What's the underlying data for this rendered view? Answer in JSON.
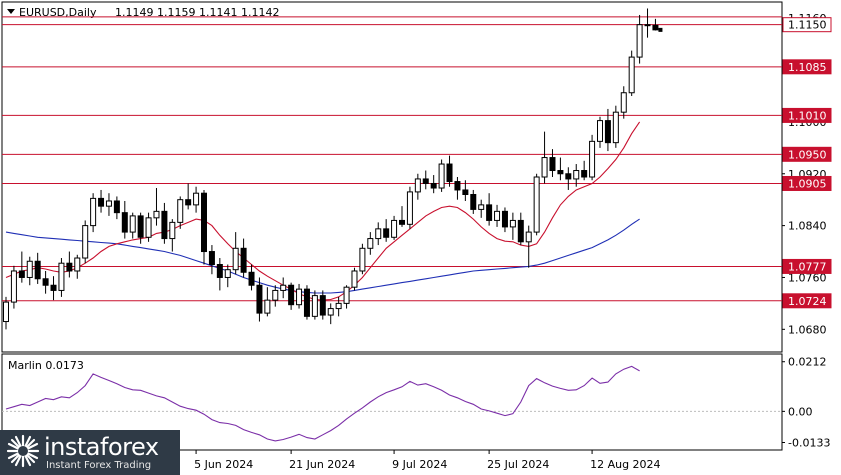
{
  "header": {
    "symbol": "EURUSD,Daily",
    "ohlc": "1.1149 1.1159 1.1141 1.1142"
  },
  "chart_data": [
    {
      "type": "candlestick",
      "title": "EURUSD,Daily",
      "ylim": [
        1.0645,
        1.1185
      ],
      "y_ticks": [
        "1.1160",
        "1.1000",
        "1.0920",
        "1.0840",
        "1.0760",
        "1.0680"
      ],
      "y_tick_values": [
        1.116,
        1.1,
        1.092,
        1.084,
        1.076,
        1.068
      ],
      "x_labels": [
        "5 Jun 2024",
        "21 Jun 2024",
        "9 Jul 2024",
        "25 Jul 2024",
        "12 Aug 2024"
      ],
      "x_label_index": [
        24,
        36,
        49,
        61,
        74
      ],
      "levels": [
        {
          "label": "1.1150",
          "value": 1.115,
          "boxed": true
        },
        {
          "label": "1.1085",
          "value": 1.1085,
          "boxed": false
        },
        {
          "label": "1.1010",
          "value": 1.101,
          "boxed": false
        },
        {
          "label": "1.0950",
          "value": 1.095,
          "boxed": false
        },
        {
          "label": "1.0905",
          "value": 1.0905,
          "boxed": false
        },
        {
          "label": "1.0777",
          "value": 1.0777,
          "boxed": false
        },
        {
          "label": "1.0724",
          "value": 1.0724,
          "boxed": false
        }
      ],
      "current_price_label": "1.1142",
      "candles": [
        [
          1.0692,
          1.073,
          1.068,
          1.0722
        ],
        [
          1.0722,
          1.0778,
          1.0712,
          1.077
        ],
        [
          1.077,
          1.08,
          1.0752,
          1.076
        ],
        [
          1.076,
          1.0792,
          1.0748,
          1.0785
        ],
        [
          1.0785,
          1.0798,
          1.075,
          1.0758
        ],
        [
          1.0758,
          1.077,
          1.0735,
          1.0748
        ],
        [
          1.0748,
          1.0762,
          1.0725,
          1.074
        ],
        [
          1.074,
          1.079,
          1.073,
          1.0782
        ],
        [
          1.0782,
          1.08,
          1.076,
          1.077
        ],
        [
          1.077,
          1.0795,
          1.0758,
          1.079
        ],
        [
          1.079,
          1.0848,
          1.0782,
          1.084
        ],
        [
          1.084,
          1.089,
          1.083,
          1.0882
        ],
        [
          1.0882,
          1.0895,
          1.086,
          1.087
        ],
        [
          1.087,
          1.089,
          1.0855,
          1.0878
        ],
        [
          1.0878,
          1.0885,
          1.085,
          1.086
        ],
        [
          1.086,
          1.0878,
          1.082,
          1.083
        ],
        [
          1.083,
          1.086,
          1.082,
          1.0855
        ],
        [
          1.0855,
          1.086,
          1.0812,
          1.0822
        ],
        [
          1.0822,
          1.086,
          1.0815,
          1.0852
        ],
        [
          1.0852,
          1.0898,
          1.084,
          1.0862
        ],
        [
          1.0862,
          1.0875,
          1.0812,
          1.082
        ],
        [
          1.082,
          1.085,
          1.08,
          1.0845
        ],
        [
          1.0845,
          1.0885,
          1.0835,
          1.088
        ],
        [
          1.088,
          1.0905,
          1.0865,
          1.0872
        ],
        [
          1.0872,
          1.09,
          1.086,
          1.089
        ],
        [
          1.089,
          1.0895,
          1.078,
          1.08
        ],
        [
          1.08,
          1.081,
          1.0765,
          1.078
        ],
        [
          1.078,
          1.079,
          1.074,
          1.076
        ],
        [
          1.076,
          1.078,
          1.0745,
          1.0772
        ],
        [
          1.0772,
          1.083,
          1.0765,
          1.0805
        ],
        [
          1.0805,
          1.082,
          1.076,
          1.0768
        ],
        [
          1.0768,
          1.078,
          1.074,
          1.0748
        ],
        [
          1.0748,
          1.076,
          1.0692,
          1.0705
        ],
        [
          1.0705,
          1.0745,
          1.07,
          1.0725
        ],
        [
          1.0725,
          1.0748,
          1.0715,
          1.074
        ],
        [
          1.074,
          1.076,
          1.0728,
          1.0748
        ],
        [
          1.0748,
          1.0752,
          1.071,
          1.0718
        ],
        [
          1.0718,
          1.075,
          1.0712,
          1.0742
        ],
        [
          1.0742,
          1.0748,
          1.0695,
          1.07
        ],
        [
          1.07,
          1.074,
          1.0695,
          1.0732
        ],
        [
          1.0732,
          1.074,
          1.0695,
          1.0702
        ],
        [
          1.0702,
          1.072,
          1.0688,
          1.0712
        ],
        [
          1.0712,
          1.073,
          1.07,
          1.072
        ],
        [
          1.072,
          1.0748,
          1.0712,
          1.0745
        ],
        [
          1.0745,
          1.0775,
          1.074,
          1.077
        ],
        [
          1.077,
          1.0812,
          1.0765,
          1.0805
        ],
        [
          1.0805,
          1.083,
          1.0795,
          1.082
        ],
        [
          1.082,
          1.0845,
          1.081,
          1.0835
        ],
        [
          1.0835,
          1.085,
          1.0815,
          1.0822
        ],
        [
          1.0822,
          1.0855,
          1.0818,
          1.0848
        ],
        [
          1.0848,
          1.087,
          1.0838,
          1.0842
        ],
        [
          1.0842,
          1.09,
          1.0835,
          1.0892
        ],
        [
          1.0892,
          1.092,
          1.088,
          1.0912
        ],
        [
          1.0912,
          1.0925,
          1.0896,
          1.0905
        ],
        [
          1.0905,
          1.0918,
          1.089,
          1.0898
        ],
        [
          1.0898,
          1.0942,
          1.0892,
          1.0935
        ],
        [
          1.0935,
          1.0948,
          1.09,
          1.0908
        ],
        [
          1.0908,
          1.0915,
          1.088,
          1.0895
        ],
        [
          1.0895,
          1.091,
          1.0878,
          1.0888
        ],
        [
          1.0888,
          1.0895,
          1.0858,
          1.0865
        ],
        [
          1.0865,
          1.088,
          1.0852,
          1.0872
        ],
        [
          1.0872,
          1.089,
          1.084,
          1.0848
        ],
        [
          1.0848,
          1.0872,
          1.0838,
          1.0862
        ],
        [
          1.0862,
          1.0868,
          1.083,
          1.0838
        ],
        [
          1.0838,
          1.086,
          1.0818,
          1.0848
        ],
        [
          1.0848,
          1.086,
          1.081,
          1.0815
        ],
        [
          1.0815,
          1.084,
          1.0775,
          1.083
        ],
        [
          1.083,
          1.092,
          1.0825,
          1.0915
        ],
        [
          1.0915,
          1.0985,
          1.0905,
          1.0945
        ],
        [
          1.0945,
          1.0958,
          1.0915,
          1.0925
        ],
        [
          1.0925,
          1.0945,
          1.091,
          1.092
        ],
        [
          1.092,
          1.093,
          1.0895,
          1.0912
        ],
        [
          1.0912,
          1.0935,
          1.09,
          1.0925
        ],
        [
          1.0925,
          1.094,
          1.091,
          1.0915
        ],
        [
          1.0915,
          1.098,
          1.091,
          1.097
        ],
        [
          1.097,
          1.1008,
          1.096,
          1.1002
        ],
        [
          1.1002,
          1.102,
          1.0955,
          1.0968
        ],
        [
          1.0968,
          1.1025,
          1.096,
          1.1015
        ],
        [
          1.1015,
          1.1055,
          1.1005,
          1.1045
        ],
        [
          1.1045,
          1.111,
          1.104,
          1.11
        ],
        [
          1.11,
          1.1165,
          1.109,
          1.115
        ],
        [
          1.115,
          1.1175,
          1.113,
          1.1149
        ],
        [
          1.1149,
          1.1159,
          1.1141,
          1.1142
        ]
      ],
      "ma_fast": [
        1.076,
        1.0765,
        1.077,
        1.0772,
        1.0775,
        1.0773,
        1.077,
        1.0768,
        1.077,
        1.0775,
        1.0782,
        1.079,
        1.08,
        1.0808,
        1.0812,
        1.0815,
        1.0818,
        1.082,
        1.0822,
        1.0828,
        1.083,
        1.0834,
        1.084,
        1.0845,
        1.085,
        1.0848,
        1.084,
        1.0825,
        1.0812,
        1.08,
        1.079,
        1.078,
        1.077,
        1.0762,
        1.0755,
        1.0748,
        1.0742,
        1.0735,
        1.073,
        1.0726,
        1.0725,
        1.0726,
        1.073,
        1.0738,
        1.0748,
        1.076,
        1.0775,
        1.079,
        1.0805,
        1.0815,
        1.0825,
        1.0835,
        1.0845,
        1.0855,
        1.0862,
        1.0868,
        1.087,
        1.0868,
        1.086,
        1.085,
        1.0838,
        1.0828,
        1.082,
        1.0816,
        1.0815,
        1.081,
        1.0808,
        1.0812,
        1.083,
        1.0852,
        1.0872,
        1.0885,
        1.0895,
        1.09,
        1.0905,
        1.0915,
        1.0928,
        1.0942,
        1.096,
        1.0982,
        1.1
      ],
      "ma_slow": [
        1.083,
        1.0828,
        1.0826,
        1.0824,
        1.0822,
        1.0821,
        1.082,
        1.0819,
        1.0818,
        1.0817,
        1.0816,
        1.0815,
        1.0814,
        1.0813,
        1.0812,
        1.081,
        1.0808,
        1.0806,
        1.0804,
        1.0802,
        1.08,
        1.0797,
        1.0794,
        1.079,
        1.0786,
        1.0782,
        1.0778,
        1.0774,
        1.077,
        1.0765,
        1.076,
        1.0756,
        1.0752,
        1.0748,
        1.0745,
        1.0742,
        1.074,
        1.0738,
        1.0737,
        1.0736,
        1.0736,
        1.0736,
        1.0737,
        1.0738,
        1.074,
        1.0742,
        1.0744,
        1.0746,
        1.0748,
        1.075,
        1.0752,
        1.0754,
        1.0756,
        1.0758,
        1.076,
        1.0762,
        1.0764,
        1.0766,
        1.0768,
        1.077,
        1.0771,
        1.0772,
        1.0773,
        1.0774,
        1.0775,
        1.0776,
        1.0777,
        1.0779,
        1.0782,
        1.0786,
        1.079,
        1.0794,
        1.0798,
        1.0802,
        1.0806,
        1.0812,
        1.0818,
        1.0825,
        1.0833,
        1.0842,
        1.085
      ],
      "colors": {
        "ma_fast": "#c8102e",
        "ma_slow": "#1f2fb5",
        "levels": "#c8102e",
        "candle": "#000000"
      }
    },
    {
      "type": "line",
      "title": "Marlin 0.0173",
      "ylim": [
        -0.0165,
        0.0245
      ],
      "y_ticks": [
        "0.0212",
        "0.00",
        "-0.0133"
      ],
      "y_tick_values": [
        0.0212,
        0.0,
        -0.0133
      ],
      "values": [
        0.001,
        0.002,
        0.003,
        0.0025,
        0.004,
        0.0055,
        0.005,
        0.0062,
        0.0058,
        0.008,
        0.011,
        0.016,
        0.0145,
        0.0132,
        0.0118,
        0.0102,
        0.0092,
        0.009,
        0.0078,
        0.0066,
        0.0058,
        0.004,
        0.0022,
        0.0012,
        0.0005,
        -0.0012,
        -0.0035,
        -0.0048,
        -0.0052,
        -0.006,
        -0.0078,
        -0.009,
        -0.01,
        -0.0118,
        -0.0126,
        -0.012,
        -0.011,
        -0.0098,
        -0.0112,
        -0.0118,
        -0.01,
        -0.0082,
        -0.006,
        -0.0032,
        -0.0008,
        0.0015,
        0.004,
        0.0062,
        0.008,
        0.0092,
        0.0105,
        0.0128,
        0.0112,
        0.0118,
        0.0105,
        0.009,
        0.007,
        0.0058,
        0.0042,
        0.003,
        0.001,
        0.0002,
        -0.0008,
        -0.0018,
        -0.001,
        0.004,
        0.011,
        0.014,
        0.0122,
        0.0108,
        0.0098,
        0.009,
        0.0092,
        0.011,
        0.0142,
        0.012,
        0.0125,
        0.016,
        0.018,
        0.0192,
        0.0173
      ],
      "color": "#7b2fa8"
    }
  ],
  "brand": {
    "name": "instaforex",
    "tagline": "Instant Forex Trading"
  }
}
